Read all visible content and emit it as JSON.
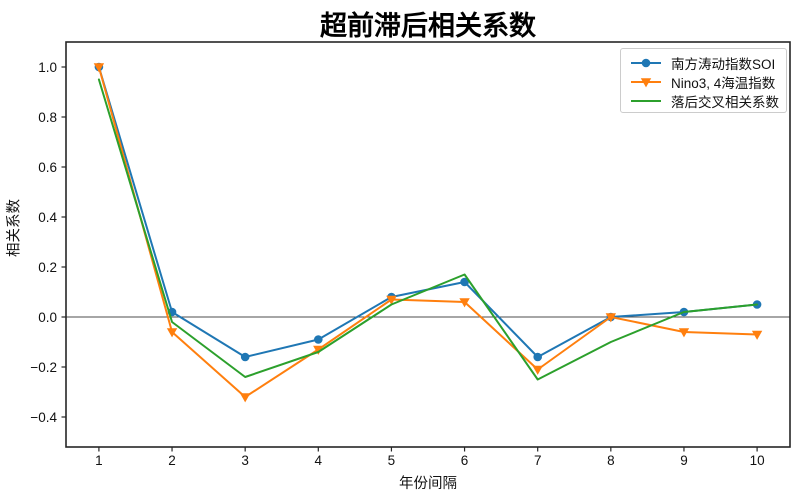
{
  "chart_data": {
    "type": "line",
    "title": "超前滞后相关系数",
    "xlabel": "年份间隔",
    "ylabel": "相关系数",
    "x": [
      1,
      2,
      3,
      4,
      5,
      6,
      7,
      8,
      9,
      10
    ],
    "series": [
      {
        "name": "南方涛动指数SOI",
        "color": "#1f77b4",
        "marker": "circle",
        "values": [
          1.0,
          0.02,
          -0.16,
          -0.09,
          0.08,
          0.14,
          -0.16,
          0.0,
          0.02,
          0.05
        ]
      },
      {
        "name": "Nino3, 4海温指数",
        "color": "#ff7f0e",
        "marker": "triangle-down",
        "values": [
          1.0,
          -0.06,
          -0.32,
          -0.13,
          0.07,
          0.06,
          -0.21,
          0.0,
          -0.06,
          -0.07
        ]
      },
      {
        "name": "落后交叉相关系数",
        "color": "#2ca02c",
        "marker": "none",
        "values": [
          0.95,
          -0.02,
          -0.24,
          -0.14,
          0.05,
          0.17,
          -0.25,
          -0.1,
          0.02,
          0.05
        ]
      }
    ],
    "xlim": [
      0.55,
      10.45
    ],
    "ylim": [
      -0.52,
      1.1
    ],
    "x_ticks": [
      1,
      2,
      3,
      4,
      5,
      6,
      7,
      8,
      9,
      10
    ],
    "y_ticks": [
      1.0,
      0.8,
      0.6,
      0.4,
      0.2,
      0.0,
      -0.2,
      -0.4
    ],
    "y_tick_labels": [
      "1.0",
      "0.8",
      "0.6",
      "0.4",
      "0.2",
      "0.0",
      "−0.2",
      "−0.4"
    ],
    "grid": false,
    "zero_line": true,
    "legend_position": "upper right",
    "axis_color": "#262626",
    "zero_line_color": "#4d4d4d",
    "tick_label_color": "#111111",
    "background": "#ffffff"
  }
}
